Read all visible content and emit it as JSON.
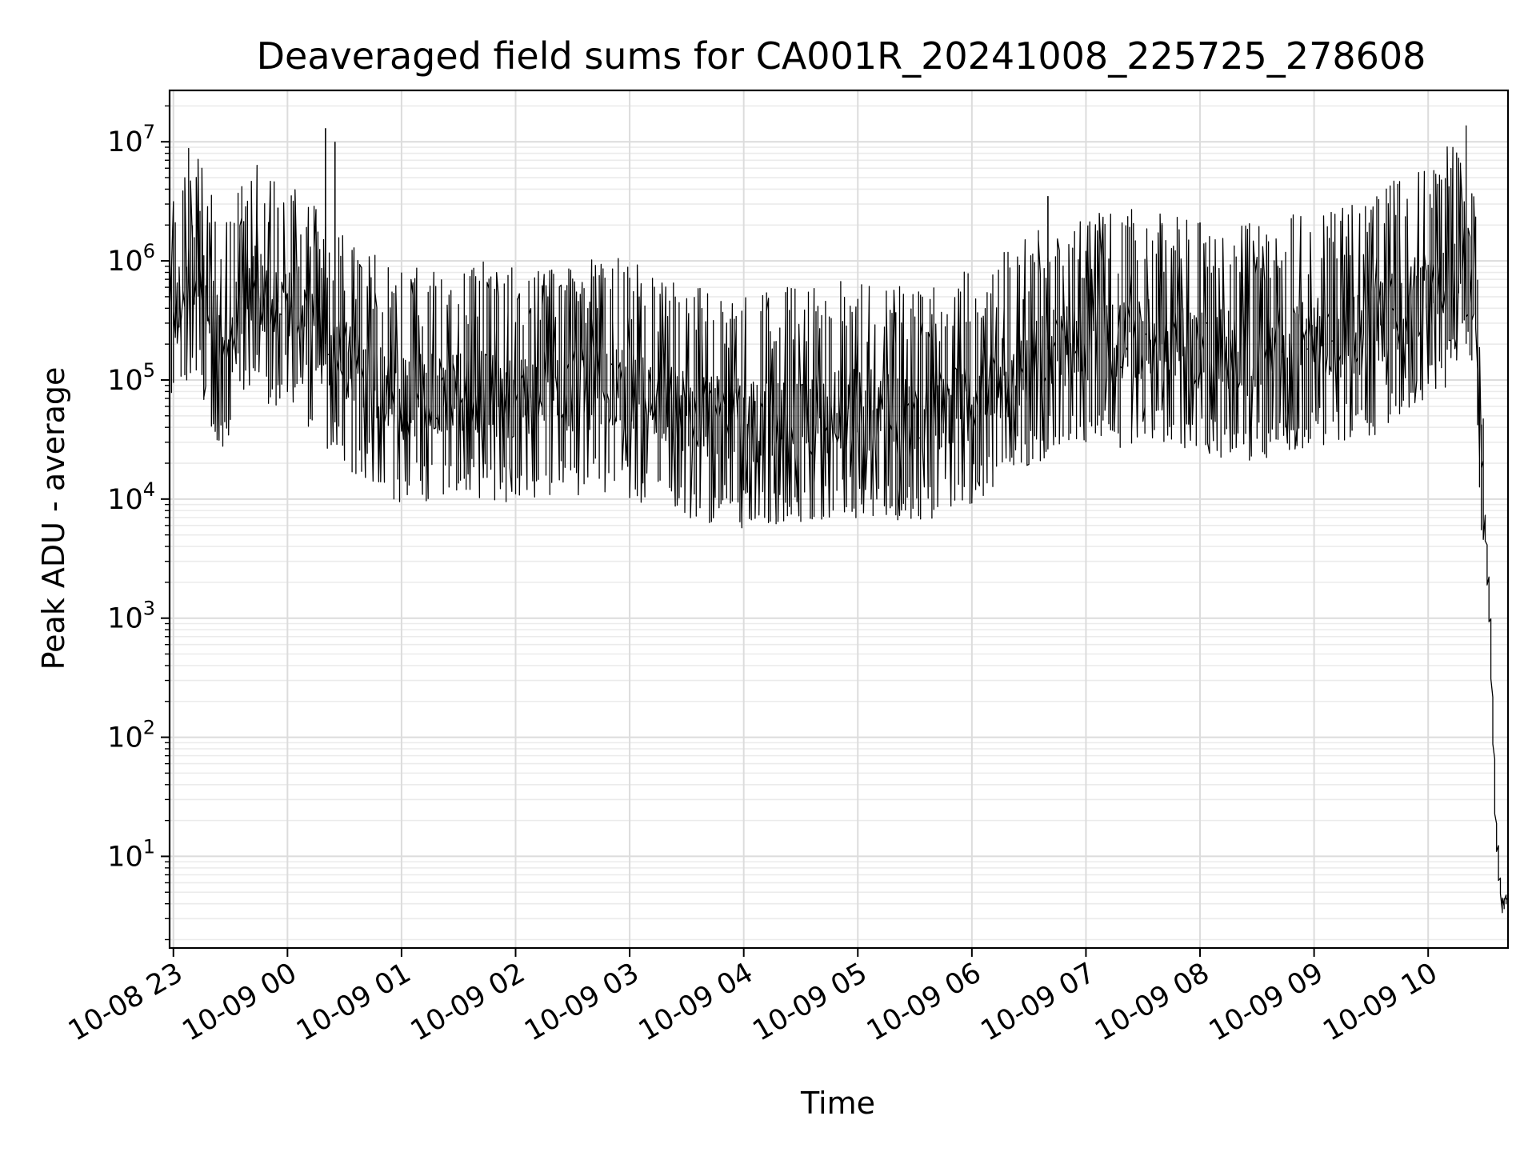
{
  "chart_data": {
    "type": "line",
    "title": "Deaveraged field sums for CA001R_20241008_225725_278608",
    "xlabel": "Time",
    "ylabel": "Peak ADU - average",
    "yscale": "log",
    "ylim": [
      1.7,
      27000000
    ],
    "xlim": [
      "2024-10-08 22:58",
      "2024-10-09 10:42"
    ],
    "grid": true,
    "x_tick_labels": [
      "10-08 23",
      "10-09 00",
      "10-09 01",
      "10-09 02",
      "10-09 03",
      "10-09 04",
      "10-09 05",
      "10-09 06",
      "10-09 07",
      "10-09 08",
      "10-09 09",
      "10-09 10"
    ],
    "x_tick_times": [
      "2024-10-08 23:00",
      "2024-10-09 00:00",
      "2024-10-09 01:00",
      "2024-10-09 02:00",
      "2024-10-09 03:00",
      "2024-10-09 04:00",
      "2024-10-09 05:00",
      "2024-10-09 06:00",
      "2024-10-09 07:00",
      "2024-10-09 08:00",
      "2024-10-09 09:00",
      "2024-10-09 10:00"
    ],
    "y_ticks": [
      {
        "base": "10",
        "exp": "1"
      },
      {
        "base": "10",
        "exp": "2"
      },
      {
        "base": "10",
        "exp": "3"
      },
      {
        "base": "10",
        "exp": "4"
      },
      {
        "base": "10",
        "exp": "5"
      },
      {
        "base": "10",
        "exp": "6"
      },
      {
        "base": "10",
        "exp": "7"
      }
    ],
    "line_color": "#000000",
    "series": [
      {
        "x": [
          "2024-10-08 22:58",
          "2024-10-08 23:02",
          "2024-10-08 23:05",
          "2024-10-08 23:10",
          "2024-10-08 23:15",
          "2024-10-08 23:20",
          "2024-10-08 23:25",
          "2024-10-08 23:30",
          "2024-10-08 23:35",
          "2024-10-08 23:40",
          "2024-10-08 23:45",
          "2024-10-08 23:50",
          "2024-10-08 23:55",
          "2024-10-09 00:00",
          "2024-10-09 00:05",
          "2024-10-09 00:10",
          "2024-10-09 00:15",
          "2024-10-09 00:20",
          "2024-10-09 00:25",
          "2024-10-09 00:30",
          "2024-10-09 00:35",
          "2024-10-09 00:40",
          "2024-10-09 00:45",
          "2024-10-09 00:50",
          "2024-10-09 00:55",
          "2024-10-09 01:00",
          "2024-10-09 01:10",
          "2024-10-09 01:20",
          "2024-10-09 01:30",
          "2024-10-09 01:40",
          "2024-10-09 01:50",
          "2024-10-09 02:00",
          "2024-10-09 02:10",
          "2024-10-09 02:20",
          "2024-10-09 02:30",
          "2024-10-09 02:40",
          "2024-10-09 02:50",
          "2024-10-09 03:00",
          "2024-10-09 03:10",
          "2024-10-09 03:20",
          "2024-10-09 03:30",
          "2024-10-09 03:40",
          "2024-10-09 03:50",
          "2024-10-09 04:00",
          "2024-10-09 04:10",
          "2024-10-09 04:20",
          "2024-10-09 04:30",
          "2024-10-09 04:40",
          "2024-10-09 04:50",
          "2024-10-09 05:00",
          "2024-10-09 05:10",
          "2024-10-09 05:20",
          "2024-10-09 05:30",
          "2024-10-09 05:40",
          "2024-10-09 05:50",
          "2024-10-09 06:00",
          "2024-10-09 06:10",
          "2024-10-09 06:20",
          "2024-10-09 06:30",
          "2024-10-09 06:40",
          "2024-10-09 06:50",
          "2024-10-09 07:00",
          "2024-10-09 07:10",
          "2024-10-09 07:20",
          "2024-10-09 07:30",
          "2024-10-09 07:40",
          "2024-10-09 07:50",
          "2024-10-09 08:00",
          "2024-10-09 08:10",
          "2024-10-09 08:20",
          "2024-10-09 08:30",
          "2024-10-09 08:40",
          "2024-10-09 08:50",
          "2024-10-09 09:00",
          "2024-10-09 09:10",
          "2024-10-09 09:20",
          "2024-10-09 09:30",
          "2024-10-09 09:35",
          "2024-10-09 09:40",
          "2024-10-09 09:45",
          "2024-10-09 09:50",
          "2024-10-09 09:55",
          "2024-10-09 10:00",
          "2024-10-09 10:05",
          "2024-10-09 10:10",
          "2024-10-09 10:15",
          "2024-10-09 10:20",
          "2024-10-09 10:25",
          "2024-10-09 10:30",
          "2024-10-09 10:33",
          "2024-10-09 10:36",
          "2024-10-09 10:39",
          "2024-10-09 10:42"
        ],
        "y": [
          700000,
          350000,
          500000,
          900000,
          600000,
          350000,
          200000,
          150000,
          400000,
          700000,
          600000,
          500000,
          450000,
          350000,
          500000,
          300000,
          250000,
          200000,
          180000,
          150000,
          130000,
          120000,
          100000,
          90000,
          80000,
          70000,
          75000,
          80000,
          85000,
          80000,
          75000,
          70000,
          75000,
          80000,
          80000,
          85000,
          90000,
          80000,
          70000,
          60000,
          55000,
          50000,
          50000,
          45000,
          45000,
          50000,
          50000,
          50000,
          55000,
          55000,
          55000,
          50000,
          50000,
          55000,
          60000,
          70000,
          90000,
          110000,
          140000,
          180000,
          200000,
          200000,
          200000,
          210000,
          220000,
          200000,
          190000,
          180000,
          180000,
          170000,
          160000,
          180000,
          200000,
          220000,
          230000,
          240000,
          250000,
          300000,
          350000,
          400000,
          450000,
          500000,
          550000,
          600000,
          700000,
          1000000,
          1800000,
          500000,
          8000,
          1000,
          20,
          4,
          4
        ]
      }
    ],
    "spikes": [
      {
        "x": "2024-10-08 23:55",
        "y": 2800000
      },
      {
        "x": "2024-10-09 00:20",
        "y": 13000000
      },
      {
        "x": "2024-10-09 00:25",
        "y": 10000000
      },
      {
        "x": "2024-10-09 06:40",
        "y": 3500000
      },
      {
        "x": "2024-10-09 07:40",
        "y": 2000000
      },
      {
        "x": "2024-10-09 08:00",
        "y": 2100000
      }
    ]
  }
}
